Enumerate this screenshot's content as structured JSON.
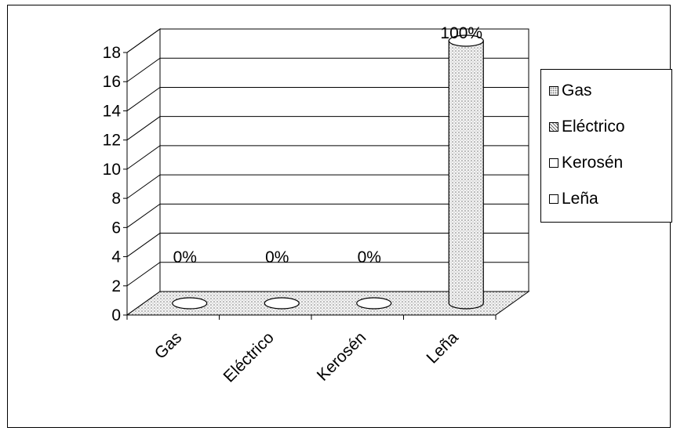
{
  "chart_data": {
    "type": "bar",
    "style": "3d-cylinder",
    "categories": [
      "Gas",
      "Eléctrico",
      "Kerosén",
      "Leña"
    ],
    "values": [
      0,
      0,
      0,
      18
    ],
    "data_labels": [
      "0%",
      "0%",
      "0%",
      "100%"
    ],
    "y_ticks": [
      "0",
      "2",
      "4",
      "6",
      "8",
      "10",
      "12",
      "14",
      "16",
      "18"
    ],
    "ylim": [
      0,
      18
    ],
    "grid": true,
    "legend_position": "right",
    "legend": [
      "Gas",
      "Eléctrico",
      "Kerosén",
      "Leña"
    ],
    "title": "",
    "xlabel": "",
    "ylabel": ""
  }
}
